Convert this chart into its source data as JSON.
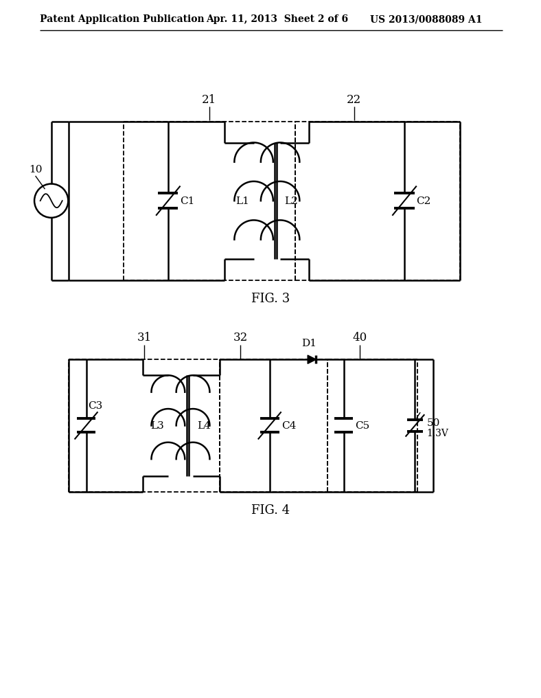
{
  "header_left": "Patent Application Publication",
  "header_center": "Apr. 11, 2013  Sheet 2 of 6",
  "header_right": "US 2013/0088089 A1",
  "fig3_label": "FIG. 3",
  "fig4_label": "FIG. 4",
  "bg_color": "#ffffff",
  "line_color": "#000000"
}
